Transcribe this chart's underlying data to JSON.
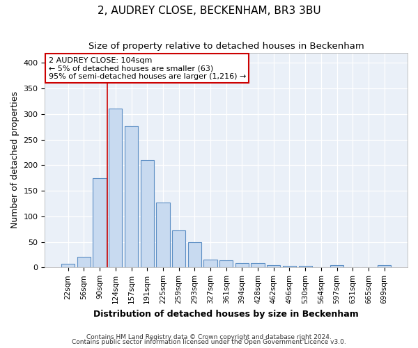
{
  "title": "2, AUDREY CLOSE, BECKENHAM, BR3 3BU",
  "subtitle": "Size of property relative to detached houses in Beckenham",
  "xlabel": "Distribution of detached houses by size in Beckenham",
  "ylabel": "Number of detached properties",
  "bar_labels": [
    "22sqm",
    "56sqm",
    "90sqm",
    "124sqm",
    "157sqm",
    "191sqm",
    "225sqm",
    "259sqm",
    "293sqm",
    "327sqm",
    "361sqm",
    "394sqm",
    "428sqm",
    "462sqm",
    "496sqm",
    "530sqm",
    "564sqm",
    "597sqm",
    "631sqm",
    "665sqm",
    "699sqm"
  ],
  "bar_values": [
    7,
    21,
    175,
    310,
    277,
    210,
    127,
    73,
    49,
    15,
    14,
    9,
    8,
    5,
    3,
    3,
    1,
    5,
    1,
    1,
    5
  ],
  "bar_color": "#c8daf0",
  "bar_edge_color": "#5b8ec4",
  "ylim": [
    0,
    420
  ],
  "vline_x": 2.5,
  "vline_color": "#cc0000",
  "annotation_text": "2 AUDREY CLOSE: 104sqm\n← 5% of detached houses are smaller (63)\n95% of semi-detached houses are larger (1,216) →",
  "annotation_box_color": "#ffffff",
  "annotation_border_color": "#cc0000",
  "footer_line1": "Contains HM Land Registry data © Crown copyright and database right 2024.",
  "footer_line2": "Contains public sector information licensed under the Open Government Licence v3.0.",
  "background_color": "#ffffff",
  "plot_bg_color": "#eaf0f8",
  "grid_color": "#ffffff",
  "title_fontsize": 11,
  "subtitle_fontsize": 9.5,
  "axis_label_fontsize": 9,
  "tick_fontsize": 7.5,
  "footer_fontsize": 6.5
}
